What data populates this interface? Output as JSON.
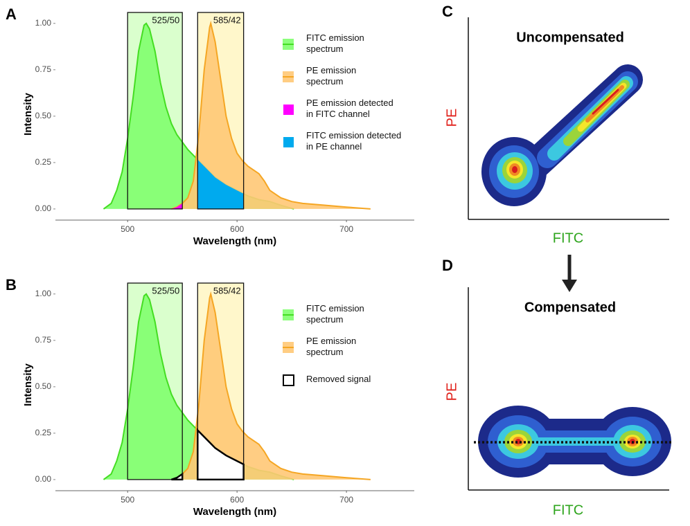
{
  "chart_data": [
    {
      "type": "area",
      "panel": "A",
      "x_label": "Wavelength (nm)",
      "y_label": "Intensity",
      "xlim": [
        434,
        762
      ],
      "ylim": [
        -0.06,
        1.07
      ],
      "xticks": [
        500,
        600,
        700
      ],
      "yticks": [
        {
          "value": 0,
          "label": "0.00"
        },
        {
          "value": 0.25,
          "label": "0.25"
        },
        {
          "value": 0.5,
          "label": "0.50"
        },
        {
          "value": 0.75,
          "label": "0.75"
        },
        {
          "value": 1,
          "label": "1.00"
        }
      ],
      "channels": [
        {
          "label": "525/50",
          "range": [
            500,
            550
          ],
          "color": "#d4ffc4"
        },
        {
          "label": "585/42",
          "range": [
            564,
            606
          ],
          "color": "#fff6c2"
        }
      ],
      "series": [
        {
          "name": "FITC emission\nspectrum",
          "color": "#44dd22",
          "fill": "#80ff6e",
          "x": [
            478,
            485,
            490,
            495,
            500,
            505,
            510,
            515,
            517,
            520,
            525,
            530,
            535,
            540,
            545,
            550,
            555,
            560,
            565,
            570,
            575,
            580,
            590,
            600,
            610,
            620,
            630,
            640,
            652
          ],
          "values": [
            0,
            0.03,
            0.1,
            0.2,
            0.38,
            0.6,
            0.85,
            0.99,
            1.0,
            0.97,
            0.85,
            0.68,
            0.55,
            0.46,
            0.4,
            0.36,
            0.32,
            0.29,
            0.26,
            0.23,
            0.2,
            0.17,
            0.13,
            0.1,
            0.07,
            0.05,
            0.04,
            0.02,
            0
          ]
        },
        {
          "name": "PE emission\nspectrum",
          "color": "#f5a623",
          "fill": "#ffc876",
          "x": [
            540,
            545,
            550,
            555,
            560,
            565,
            570,
            575,
            576,
            580,
            585,
            590,
            595,
            600,
            605,
            610,
            620,
            625,
            630,
            640,
            650,
            660,
            680,
            700,
            722
          ],
          "values": [
            0,
            0.01,
            0.03,
            0.06,
            0.15,
            0.4,
            0.75,
            0.98,
            1.0,
            0.9,
            0.7,
            0.5,
            0.38,
            0.3,
            0.26,
            0.23,
            0.19,
            0.15,
            0.1,
            0.06,
            0.04,
            0.03,
            0.02,
            0.01,
            0
          ]
        }
      ],
      "overlays": [
        {
          "name": "PE emission detected\nin FITC channel",
          "color": "#ff00ff"
        },
        {
          "name": "FITC emission detected\nin PE channel",
          "color": "#00aaee"
        }
      ]
    },
    {
      "type": "area",
      "panel": "B",
      "x_label": "Wavelength (nm)",
      "y_label": "Intensity",
      "xlim": [
        434,
        762
      ],
      "ylim": [
        -0.06,
        1.07
      ],
      "xticks": [
        500,
        600,
        700
      ],
      "yticks": [
        {
          "value": 0,
          "label": "0.00"
        },
        {
          "value": 0.25,
          "label": "0.25"
        },
        {
          "value": 0.5,
          "label": "0.50"
        },
        {
          "value": 0.75,
          "label": "0.75"
        },
        {
          "value": 1,
          "label": "1.00"
        }
      ],
      "channels": [
        {
          "label": "525/50",
          "range": [
            500,
            550
          ],
          "color": "#d4ffc4"
        },
        {
          "label": "585/42",
          "range": [
            564,
            606
          ],
          "color": "#fff6c2"
        }
      ],
      "series": [
        {
          "name": "FITC emission\nspectrum",
          "color": "#44dd22",
          "fill": "#80ff6e",
          "x": [
            478,
            485,
            490,
            495,
            500,
            505,
            510,
            515,
            517,
            520,
            525,
            530,
            535,
            540,
            545,
            550,
            555,
            560,
            565,
            570,
            575,
            580,
            590,
            600,
            610,
            620,
            630,
            640,
            652
          ],
          "values": [
            0,
            0.03,
            0.1,
            0.2,
            0.38,
            0.6,
            0.85,
            0.99,
            1.0,
            0.97,
            0.85,
            0.68,
            0.55,
            0.46,
            0.4,
            0.36,
            0.32,
            0.29,
            0.26,
            0.23,
            0.2,
            0.17,
            0.13,
            0.1,
            0.07,
            0.05,
            0.04,
            0.02,
            0
          ]
        },
        {
          "name": "PE emission\nspectrum",
          "color": "#f5a623",
          "fill": "#ffc876",
          "x": [
            540,
            545,
            550,
            555,
            560,
            565,
            570,
            575,
            576,
            580,
            585,
            590,
            595,
            600,
            605,
            610,
            620,
            625,
            630,
            640,
            650,
            660,
            680,
            700,
            722
          ],
          "values": [
            0,
            0.01,
            0.03,
            0.06,
            0.15,
            0.4,
            0.75,
            0.98,
            1.0,
            0.9,
            0.7,
            0.5,
            0.38,
            0.3,
            0.26,
            0.23,
            0.19,
            0.15,
            0.1,
            0.06,
            0.04,
            0.03,
            0.02,
            0.01,
            0
          ]
        }
      ],
      "overlays": [
        {
          "name": "Removed signal",
          "color": "#ffffff",
          "stroke": "#000000"
        }
      ]
    }
  ],
  "panels": [
    {
      "letter": "C",
      "title": "Uncompensated",
      "y_label": "PE",
      "x_label": "FITC"
    },
    {
      "letter": "D",
      "title": "Compensated",
      "y_label": "PE",
      "x_label": "FITC"
    }
  ]
}
